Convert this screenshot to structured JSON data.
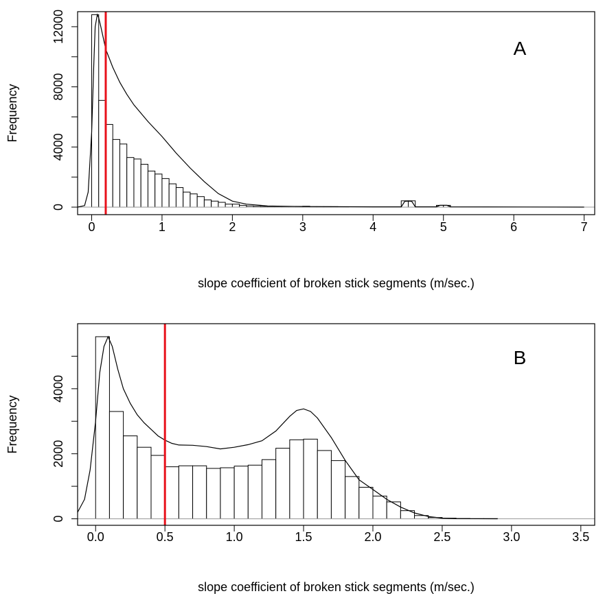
{
  "chart_data": [
    {
      "type": "bar",
      "panel_label": "A",
      "xlabel": "slope coefficient of broken stick segments (m/sec.)",
      "ylabel": "Frequency",
      "xlim": [
        -0.2,
        7.15
      ],
      "ylim": [
        -500,
        13000
      ],
      "xticks": [
        0,
        1,
        2,
        3,
        4,
        5,
        6,
        7
      ],
      "xtick_labels": [
        "0",
        "1",
        "2",
        "3",
        "4",
        "5",
        "6",
        "7"
      ],
      "yticks": [
        0,
        2000,
        4000,
        6000,
        8000,
        10000,
        12000
      ],
      "ytick_labels": [
        "0",
        "",
        "4000",
        "",
        "8000",
        "",
        "12000"
      ],
      "bin_width": 0.1,
      "bins_start": [
        0.0,
        0.1,
        0.2,
        0.3,
        0.4,
        0.5,
        0.6,
        0.7,
        0.8,
        0.9,
        1.0,
        1.1,
        1.2,
        1.3,
        1.4,
        1.5,
        1.6,
        1.7,
        1.8,
        1.9,
        2.0,
        2.1,
        2.2,
        2.3,
        2.4,
        2.5,
        2.6,
        2.7,
        2.8,
        2.9,
        3.0,
        3.1,
        3.2,
        3.3,
        3.4,
        4.4,
        4.5,
        4.9,
        5.0
      ],
      "values": [
        12800,
        7100,
        5500,
        4500,
        4200,
        3300,
        3200,
        2850,
        2400,
        2200,
        1900,
        1550,
        1300,
        1000,
        880,
        700,
        480,
        400,
        320,
        200,
        200,
        120,
        80,
        60,
        50,
        40,
        30,
        30,
        40,
        50,
        60,
        30,
        30,
        30,
        30,
        420,
        420,
        120,
        120
      ],
      "density_curve": {
        "x": [
          -0.2,
          -0.1,
          -0.05,
          0.0,
          0.03,
          0.05,
          0.08,
          0.1,
          0.13,
          0.2,
          0.3,
          0.4,
          0.5,
          0.6,
          0.8,
          1.0,
          1.2,
          1.4,
          1.6,
          1.8,
          2.0,
          2.2,
          2.5,
          3.0,
          4.0,
          4.4,
          4.45,
          4.5,
          4.55,
          4.6,
          4.9,
          4.95,
          5.0,
          5.05,
          5.1,
          7.0
        ],
        "y": [
          0,
          100,
          1000,
          5000,
          9500,
          12000,
          12800,
          12600,
          12000,
          10500,
          9300,
          8300,
          7500,
          6800,
          5700,
          4700,
          3600,
          2600,
          1700,
          900,
          400,
          200,
          80,
          40,
          20,
          20,
          380,
          400,
          380,
          20,
          20,
          120,
          120,
          120,
          20,
          0
        ]
      },
      "reference_line": {
        "x": 0.2,
        "color": "#e8101a"
      }
    },
    {
      "type": "bar",
      "panel_label": "B",
      "xlabel": "slope coefficient of broken stick segments (m/sec.)",
      "ylabel": "Frequency",
      "xlim": [
        -0.13,
        3.6
      ],
      "ylim": [
        -200,
        6000
      ],
      "xticks": [
        0.0,
        0.5,
        1.0,
        1.5,
        2.0,
        2.5,
        3.0,
        3.5
      ],
      "xtick_labels": [
        "0.0",
        "0.5",
        "1.0",
        "1.5",
        "2.0",
        "2.5",
        "3.0",
        "3.5"
      ],
      "yticks": [
        0,
        1000,
        2000,
        3000,
        4000,
        5000
      ],
      "ytick_labels": [
        "0",
        "",
        "2000",
        "",
        "4000",
        ""
      ],
      "bin_width": 0.1,
      "bins_start": [
        0.0,
        0.1,
        0.2,
        0.3,
        0.4,
        0.5,
        0.6,
        0.7,
        0.8,
        0.9,
        1.0,
        1.1,
        1.2,
        1.3,
        1.4,
        1.5,
        1.6,
        1.7,
        1.8,
        1.9,
        2.0,
        2.1,
        2.2,
        2.3,
        2.4,
        2.5,
        2.6,
        2.7,
        2.8
      ],
      "values": [
        5600,
        3300,
        2550,
        2200,
        1950,
        1600,
        1630,
        1630,
        1550,
        1570,
        1620,
        1650,
        1820,
        2170,
        2430,
        2450,
        2100,
        1790,
        1300,
        970,
        700,
        520,
        250,
        100,
        40,
        20,
        10,
        5,
        5
      ],
      "density_curve": {
        "x": [
          -0.13,
          -0.08,
          -0.04,
          0.0,
          0.03,
          0.06,
          0.09,
          0.12,
          0.16,
          0.2,
          0.25,
          0.3,
          0.35,
          0.4,
          0.45,
          0.5,
          0.55,
          0.6,
          0.7,
          0.8,
          0.9,
          1.0,
          1.1,
          1.2,
          1.3,
          1.4,
          1.45,
          1.5,
          1.55,
          1.6,
          1.7,
          1.8,
          1.9,
          2.0,
          2.1,
          2.2,
          2.3,
          2.4,
          2.5,
          2.6,
          2.9
        ],
        "y": [
          200,
          600,
          1500,
          3000,
          4500,
          5300,
          5600,
          5300,
          4600,
          4000,
          3550,
          3200,
          2950,
          2750,
          2550,
          2420,
          2320,
          2270,
          2260,
          2220,
          2150,
          2200,
          2280,
          2400,
          2700,
          3150,
          3330,
          3380,
          3300,
          3100,
          2500,
          1800,
          1200,
          900,
          600,
          360,
          180,
          70,
          20,
          5,
          0
        ]
      },
      "reference_line": {
        "x": 0.5,
        "color": "#e8101a"
      }
    }
  ]
}
